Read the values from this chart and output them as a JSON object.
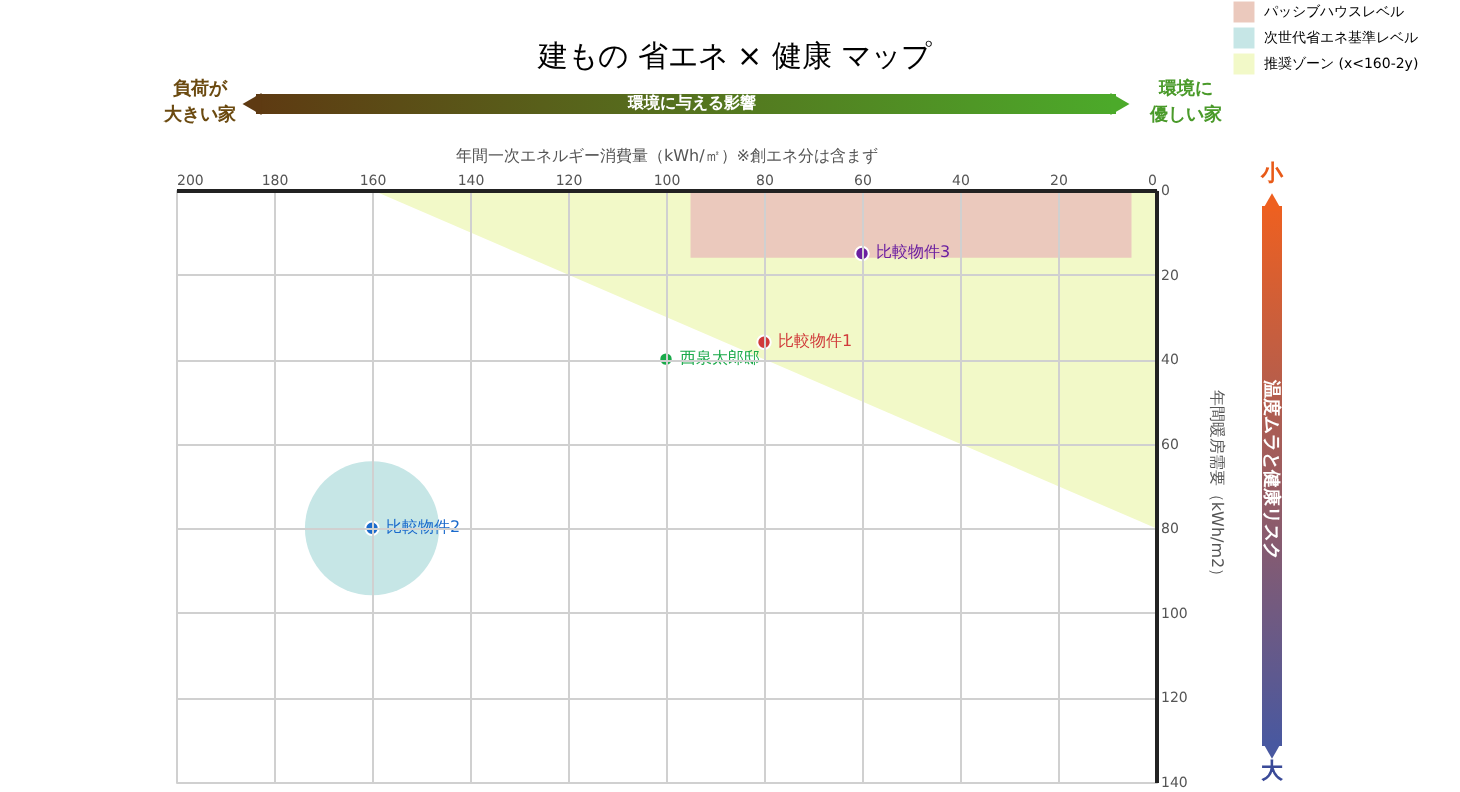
{
  "chart_data": {
    "type": "scatter",
    "title": "建もの 省エネ × 健康 マップ",
    "xlabel": "年間一次エネルギー消費量（kWh/㎡）※創エネ分は含まず",
    "ylabel": "年間暖房需要（kWh/m2）",
    "xlim": [
      200,
      0
    ],
    "xticks": [
      200,
      180,
      160,
      140,
      120,
      100,
      80,
      60,
      40,
      20,
      0
    ],
    "ylim": [
      140,
      0
    ],
    "yticks": [
      0,
      20,
      40,
      60,
      80,
      100,
      120,
      140
    ],
    "grid": true,
    "legend": "top right",
    "marker": "circle",
    "series": [
      {
        "name": "パッシブハウスレベル",
        "type": "area",
        "marker": "none",
        "color": "#ebc9bd",
        "x": [
          95,
          5
        ],
        "values": [
          16,
          16
        ]
      },
      {
        "name": "次世代省エネ基準レベル",
        "type": "bubble",
        "color": "#c6e6e6",
        "x": [
          160
        ],
        "values": [
          80
        ],
        "sizes": [
          1
        ]
      },
      {
        "name": "推奨ゾーン (x<160-2y)",
        "type": "area",
        "marker": "none",
        "color": "#f2f9c8",
        "x": [
          160,
          0
        ],
        "values": [
          0,
          80
        ]
      },
      {
        "name": "比較物件3",
        "color": "#6a1fa0",
        "x": [
          60
        ],
        "values": [
          15
        ]
      },
      {
        "name": "比較物件1",
        "color": "#d03a3a",
        "x": [
          80
        ],
        "values": [
          36
        ]
      },
      {
        "name": "西泉太郎邸",
        "color": "#1aaa4a",
        "x": [
          100
        ],
        "values": [
          40
        ]
      },
      {
        "name": "比較物件2",
        "color": "#1a6acc",
        "x": [
          160
        ],
        "values": [
          80
        ]
      }
    ],
    "annotations": [
      "環境に与える影響",
      "負荷が大きい家",
      "環境に優しい家",
      "温度ムラと健康リスク",
      "小",
      "大"
    ]
  }
}
